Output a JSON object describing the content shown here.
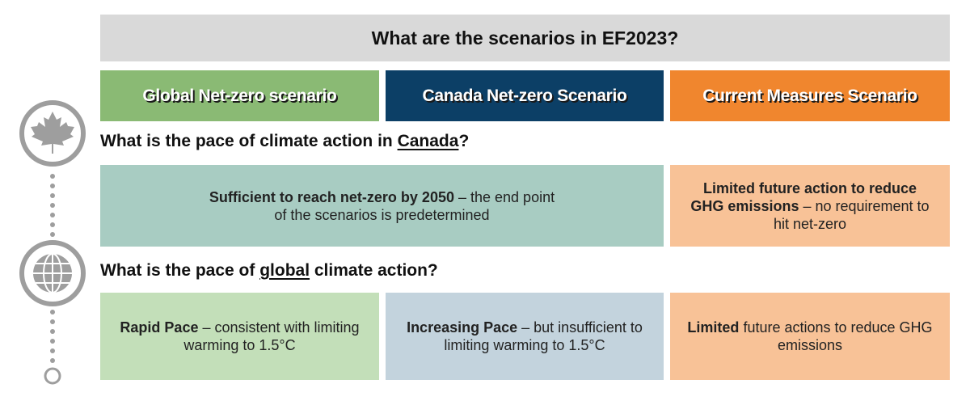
{
  "title": "What are the scenarios in EF2023?",
  "scenarios": [
    {
      "label": "Global Net-zero scenario",
      "color": "#8aba74"
    },
    {
      "label": "Canada Net-zero Scenario",
      "color": "#0c3f66"
    },
    {
      "label": "Current Measures Scenario",
      "color": "#f0862e"
    }
  ],
  "q1": {
    "before": "What is the pace of climate action in ",
    "emph": "Canada",
    "after": "?",
    "icon": "maple-leaf-icon"
  },
  "row1": [
    {
      "bold": "Sufficient to reach net-zero by 2050",
      "rest": " – the end point of the scenarios is predetermined",
      "color": "#a8ccc2"
    },
    {
      "bold": "Limited future action to reduce GHG emissions",
      "rest": " – no requirement to hit net-zero",
      "color": "#f8c297"
    }
  ],
  "q2": {
    "before": "What is the pace of ",
    "emph": "global",
    "after": " climate action?",
    "icon": "globe-icon"
  },
  "row2": [
    {
      "bold": "Rapid Pace",
      "rest": " – consistent with limiting warming to 1.5°C",
      "color": "#c3dfb9"
    },
    {
      "bold": "Increasing Pace",
      "rest": " – but insufficient to limiting warming to 1.5°C",
      "color": "#c3d3dd"
    },
    {
      "bold": "Limited",
      "rest": " future actions to reduce GHG emissions",
      "color": "#f8c297"
    }
  ]
}
